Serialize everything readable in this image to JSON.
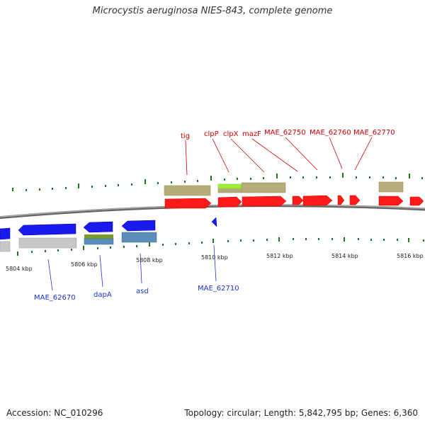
{
  "title": "Microcystis aeruginosa NIES-843, complete genome",
  "footer": {
    "accession": "Accession: NC_010296",
    "topology": "Topology: circular; Length: 5,842,795 bp; Genes: 6,360"
  },
  "ticks": [
    "5804 kbp",
    "5806 kbp",
    "5808 kbp",
    "5810 kbp",
    "5812 kbp",
    "5814 kbp",
    "5816 kbp"
  ],
  "forward_labels": [
    "tig",
    "clpP",
    "clpX",
    "mazF",
    "MAE_62750",
    "MAE_62760",
    "MAE_62770"
  ],
  "reverse_labels": [
    "MAE_62670",
    "dapA",
    "asd",
    "MAE_62710"
  ],
  "colors": {
    "forward": "#ff1a1a",
    "reverse": "#1a1aee",
    "olive": "#b5ac78",
    "lime": "#99ee33",
    "steel": "#5b8fba",
    "grey": "#c8c8c8",
    "tick": "#1a6e1a",
    "backbone": "#888888"
  }
}
